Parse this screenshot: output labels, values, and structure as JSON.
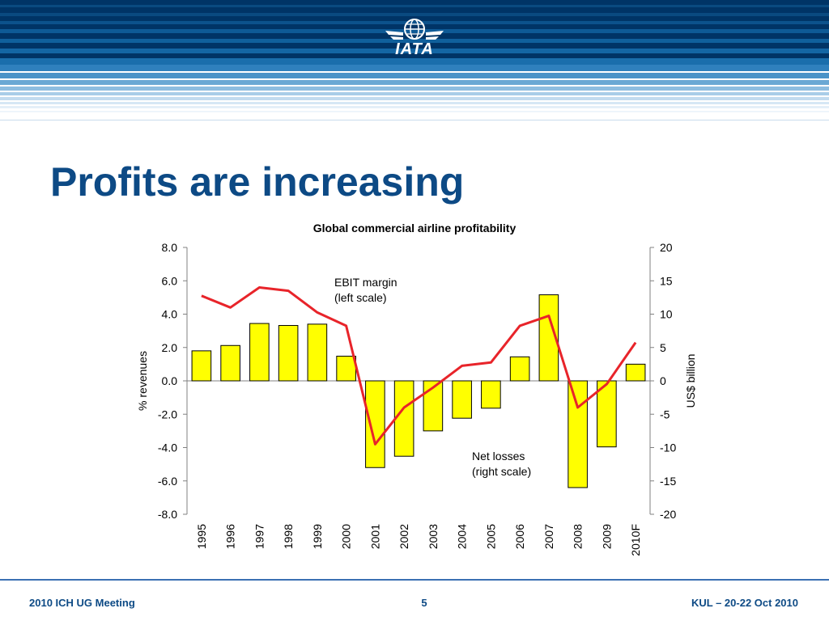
{
  "header": {
    "logo_text": "IATA"
  },
  "slide": {
    "title": "Profits are increasing"
  },
  "colors": {
    "banner_dark": "#003466",
    "title": "#0d4a85",
    "bar_fill": "#ffff00",
    "line": "#e8242a"
  },
  "footer": {
    "left": "2010 ICH UG Meeting",
    "page": "5",
    "right": "KUL – 20-22 Oct 2010"
  },
  "chart_data": {
    "type": "bar+line",
    "title": "Global commercial airline profitability",
    "categories": [
      "1995",
      "1996",
      "1997",
      "1998",
      "1999",
      "2000",
      "2001",
      "2002",
      "2003",
      "2004",
      "2005",
      "2006",
      "2007",
      "2008",
      "2009",
      "2010F"
    ],
    "ylabel_left": "% revenues",
    "ylabel_right": "US$ billion",
    "ylim_left": [
      -8,
      8
    ],
    "ylim_right": [
      -20,
      20
    ],
    "yticks_left": [
      "8.0",
      "6.0",
      "4.0",
      "2.0",
      "0.0",
      "-2.0",
      "-4.0",
      "-6.0",
      "-8.0"
    ],
    "yticks_right": [
      "20",
      "15",
      "10",
      "5",
      "0",
      "-5",
      "-10",
      "-15",
      "-20"
    ],
    "series": [
      {
        "name": "Net losses (right scale)",
        "kind": "bar",
        "axis": "right",
        "values": [
          4.5,
          5.3,
          8.6,
          8.3,
          8.5,
          3.7,
          -13.0,
          -11.3,
          -7.5,
          -5.6,
          -4.1,
          3.6,
          12.9,
          -16.0,
          -9.9,
          2.5
        ]
      },
      {
        "name": "EBIT margin (left scale)",
        "kind": "line",
        "axis": "left",
        "values": [
          5.1,
          4.4,
          5.6,
          5.4,
          4.1,
          3.3,
          -3.8,
          -1.6,
          -0.4,
          0.9,
          1.1,
          3.3,
          3.9,
          -1.6,
          -0.2,
          2.3
        ]
      }
    ],
    "annotations": [
      {
        "line1": "EBIT margin",
        "line2": "(left scale)"
      },
      {
        "line1": "Net losses",
        "line2": "(right scale)"
      }
    ]
  }
}
